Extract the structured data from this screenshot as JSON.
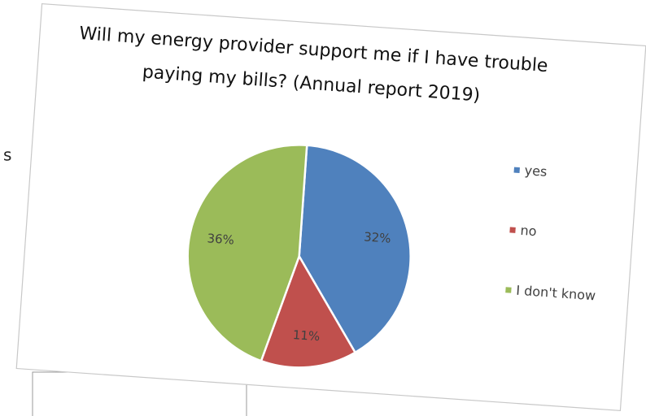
{
  "fragment": "s",
  "chart_data": {
    "type": "pie",
    "title": "Will my energy provider support me if I have trouble paying my bills? (Annual report 2019)",
    "categories": [
      "yes",
      "no",
      "I don't know"
    ],
    "values": [
      32,
      11,
      36
    ],
    "value_labels": [
      "32%",
      "11%",
      "36%"
    ],
    "colors": [
      "#4f81bd",
      "#c0504d",
      "#9bbb59"
    ],
    "legend": "right"
  }
}
